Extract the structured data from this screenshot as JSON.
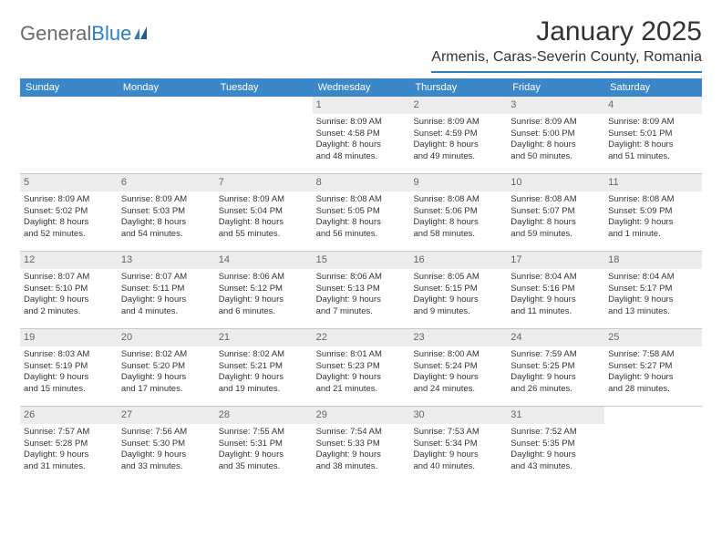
{
  "brand": {
    "part1": "General",
    "part2": "Blue"
  },
  "title": "January 2025",
  "location": "Armenis, Caras-Severin County, Romania",
  "colors": {
    "header_bar": "#3b87c8",
    "accent_line": "#2f7ec0",
    "day_bg": "#ececec",
    "text": "#333333",
    "muted": "#666666",
    "grid": "#c9c9c9"
  },
  "dow": [
    "Sunday",
    "Monday",
    "Tuesday",
    "Wednesday",
    "Thursday",
    "Friday",
    "Saturday"
  ],
  "weeks": [
    [
      null,
      null,
      null,
      {
        "n": "1",
        "sr": "Sunrise: 8:09 AM",
        "ss": "Sunset: 4:58 PM",
        "d1": "Daylight: 8 hours",
        "d2": "and 48 minutes."
      },
      {
        "n": "2",
        "sr": "Sunrise: 8:09 AM",
        "ss": "Sunset: 4:59 PM",
        "d1": "Daylight: 8 hours",
        "d2": "and 49 minutes."
      },
      {
        "n": "3",
        "sr": "Sunrise: 8:09 AM",
        "ss": "Sunset: 5:00 PM",
        "d1": "Daylight: 8 hours",
        "d2": "and 50 minutes."
      },
      {
        "n": "4",
        "sr": "Sunrise: 8:09 AM",
        "ss": "Sunset: 5:01 PM",
        "d1": "Daylight: 8 hours",
        "d2": "and 51 minutes."
      }
    ],
    [
      {
        "n": "5",
        "sr": "Sunrise: 8:09 AM",
        "ss": "Sunset: 5:02 PM",
        "d1": "Daylight: 8 hours",
        "d2": "and 52 minutes."
      },
      {
        "n": "6",
        "sr": "Sunrise: 8:09 AM",
        "ss": "Sunset: 5:03 PM",
        "d1": "Daylight: 8 hours",
        "d2": "and 54 minutes."
      },
      {
        "n": "7",
        "sr": "Sunrise: 8:09 AM",
        "ss": "Sunset: 5:04 PM",
        "d1": "Daylight: 8 hours",
        "d2": "and 55 minutes."
      },
      {
        "n": "8",
        "sr": "Sunrise: 8:08 AM",
        "ss": "Sunset: 5:05 PM",
        "d1": "Daylight: 8 hours",
        "d2": "and 56 minutes."
      },
      {
        "n": "9",
        "sr": "Sunrise: 8:08 AM",
        "ss": "Sunset: 5:06 PM",
        "d1": "Daylight: 8 hours",
        "d2": "and 58 minutes."
      },
      {
        "n": "10",
        "sr": "Sunrise: 8:08 AM",
        "ss": "Sunset: 5:07 PM",
        "d1": "Daylight: 8 hours",
        "d2": "and 59 minutes."
      },
      {
        "n": "11",
        "sr": "Sunrise: 8:08 AM",
        "ss": "Sunset: 5:09 PM",
        "d1": "Daylight: 9 hours",
        "d2": "and 1 minute."
      }
    ],
    [
      {
        "n": "12",
        "sr": "Sunrise: 8:07 AM",
        "ss": "Sunset: 5:10 PM",
        "d1": "Daylight: 9 hours",
        "d2": "and 2 minutes."
      },
      {
        "n": "13",
        "sr": "Sunrise: 8:07 AM",
        "ss": "Sunset: 5:11 PM",
        "d1": "Daylight: 9 hours",
        "d2": "and 4 minutes."
      },
      {
        "n": "14",
        "sr": "Sunrise: 8:06 AM",
        "ss": "Sunset: 5:12 PM",
        "d1": "Daylight: 9 hours",
        "d2": "and 6 minutes."
      },
      {
        "n": "15",
        "sr": "Sunrise: 8:06 AM",
        "ss": "Sunset: 5:13 PM",
        "d1": "Daylight: 9 hours",
        "d2": "and 7 minutes."
      },
      {
        "n": "16",
        "sr": "Sunrise: 8:05 AM",
        "ss": "Sunset: 5:15 PM",
        "d1": "Daylight: 9 hours",
        "d2": "and 9 minutes."
      },
      {
        "n": "17",
        "sr": "Sunrise: 8:04 AM",
        "ss": "Sunset: 5:16 PM",
        "d1": "Daylight: 9 hours",
        "d2": "and 11 minutes."
      },
      {
        "n": "18",
        "sr": "Sunrise: 8:04 AM",
        "ss": "Sunset: 5:17 PM",
        "d1": "Daylight: 9 hours",
        "d2": "and 13 minutes."
      }
    ],
    [
      {
        "n": "19",
        "sr": "Sunrise: 8:03 AM",
        "ss": "Sunset: 5:19 PM",
        "d1": "Daylight: 9 hours",
        "d2": "and 15 minutes."
      },
      {
        "n": "20",
        "sr": "Sunrise: 8:02 AM",
        "ss": "Sunset: 5:20 PM",
        "d1": "Daylight: 9 hours",
        "d2": "and 17 minutes."
      },
      {
        "n": "21",
        "sr": "Sunrise: 8:02 AM",
        "ss": "Sunset: 5:21 PM",
        "d1": "Daylight: 9 hours",
        "d2": "and 19 minutes."
      },
      {
        "n": "22",
        "sr": "Sunrise: 8:01 AM",
        "ss": "Sunset: 5:23 PM",
        "d1": "Daylight: 9 hours",
        "d2": "and 21 minutes."
      },
      {
        "n": "23",
        "sr": "Sunrise: 8:00 AM",
        "ss": "Sunset: 5:24 PM",
        "d1": "Daylight: 9 hours",
        "d2": "and 24 minutes."
      },
      {
        "n": "24",
        "sr": "Sunrise: 7:59 AM",
        "ss": "Sunset: 5:25 PM",
        "d1": "Daylight: 9 hours",
        "d2": "and 26 minutes."
      },
      {
        "n": "25",
        "sr": "Sunrise: 7:58 AM",
        "ss": "Sunset: 5:27 PM",
        "d1": "Daylight: 9 hours",
        "d2": "and 28 minutes."
      }
    ],
    [
      {
        "n": "26",
        "sr": "Sunrise: 7:57 AM",
        "ss": "Sunset: 5:28 PM",
        "d1": "Daylight: 9 hours",
        "d2": "and 31 minutes."
      },
      {
        "n": "27",
        "sr": "Sunrise: 7:56 AM",
        "ss": "Sunset: 5:30 PM",
        "d1": "Daylight: 9 hours",
        "d2": "and 33 minutes."
      },
      {
        "n": "28",
        "sr": "Sunrise: 7:55 AM",
        "ss": "Sunset: 5:31 PM",
        "d1": "Daylight: 9 hours",
        "d2": "and 35 minutes."
      },
      {
        "n": "29",
        "sr": "Sunrise: 7:54 AM",
        "ss": "Sunset: 5:33 PM",
        "d1": "Daylight: 9 hours",
        "d2": "and 38 minutes."
      },
      {
        "n": "30",
        "sr": "Sunrise: 7:53 AM",
        "ss": "Sunset: 5:34 PM",
        "d1": "Daylight: 9 hours",
        "d2": "and 40 minutes."
      },
      {
        "n": "31",
        "sr": "Sunrise: 7:52 AM",
        "ss": "Sunset: 5:35 PM",
        "d1": "Daylight: 9 hours",
        "d2": "and 43 minutes."
      },
      null
    ]
  ]
}
